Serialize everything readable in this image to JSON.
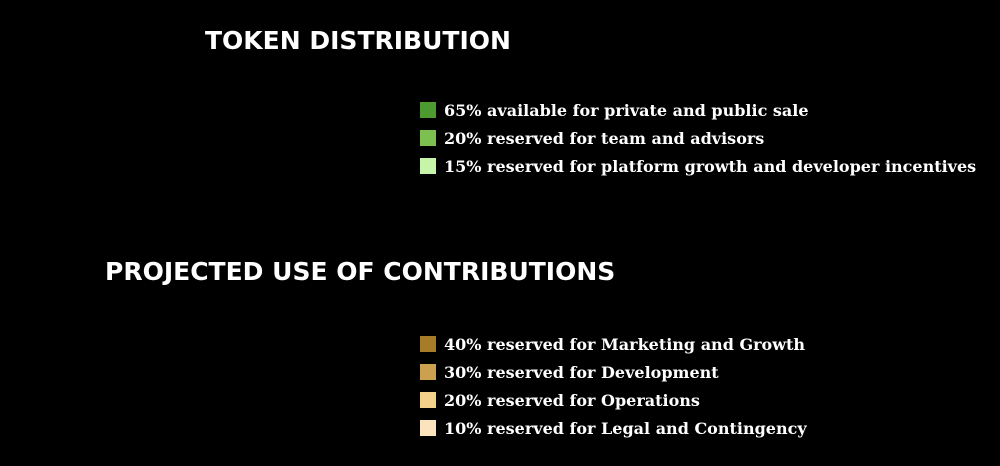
{
  "sections": [
    {
      "title": "TOKEN DISTRIBUTION",
      "items": [
        {
          "label": "65% available for private and public sale",
          "color": "#4d9a30"
        },
        {
          "label": "20% reserved for team and advisors",
          "color": "#7cc14f"
        },
        {
          "label": "15% reserved for platform growth and developer incentives",
          "color": "#c6f5aa"
        }
      ]
    },
    {
      "title": "PROJECTED USE OF CONTRIBUTIONS",
      "items": [
        {
          "label": "40% reserved for Marketing and Growth",
          "color": "#a77c29"
        },
        {
          "label": "30% reserved for Development",
          "color": "#cba04f"
        },
        {
          "label": "20% reserved for Operations",
          "color": "#f4d18a"
        },
        {
          "label": "10% reserved for Legal and Contingency",
          "color": "#fbe3bd"
        }
      ]
    }
  ]
}
